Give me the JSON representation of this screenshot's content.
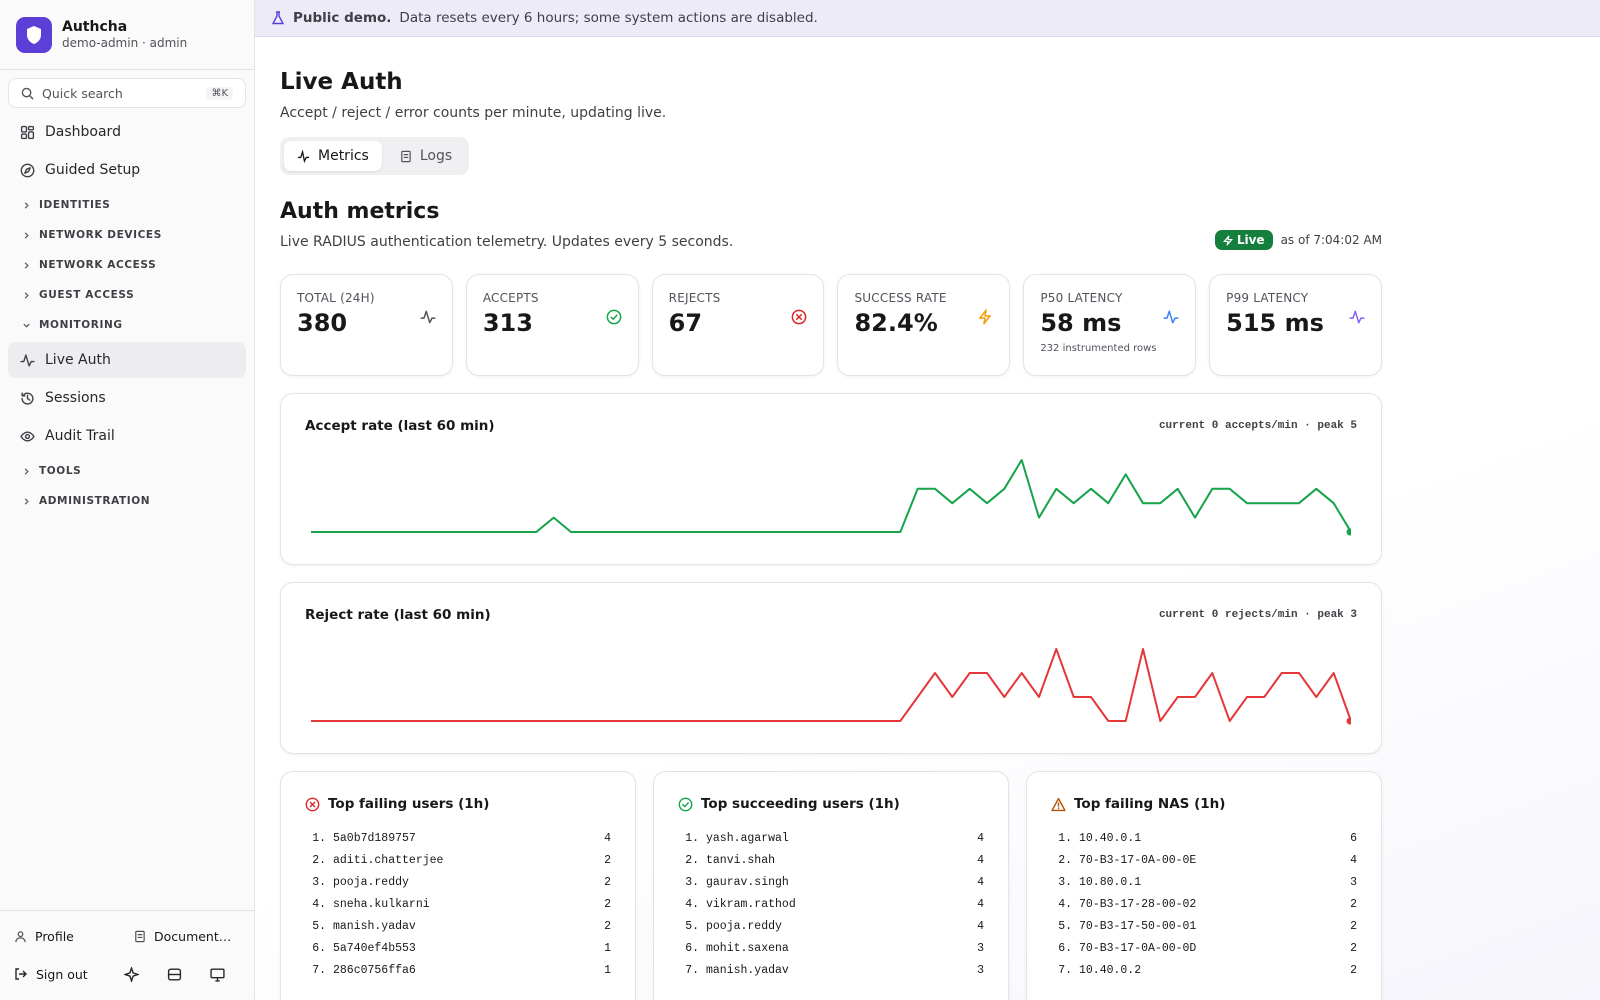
{
  "banner": {
    "bold": "Public demo.",
    "text": "Data resets every 6 hours; some system actions are disabled."
  },
  "sidebar": {
    "brand": "Authcha",
    "user": "demo-admin · admin",
    "search": "Quick search",
    "shortcut": "⌘K",
    "nav": [
      {
        "kind": "item",
        "label": "Dashboard",
        "icon": "grid"
      },
      {
        "kind": "item",
        "label": "Guided Setup",
        "icon": "compass"
      },
      {
        "kind": "group",
        "label": "IDENTITIES",
        "open": false
      },
      {
        "kind": "group",
        "label": "NETWORK DEVICES",
        "open": false
      },
      {
        "kind": "group",
        "label": "NETWORK ACCESS",
        "open": false
      },
      {
        "kind": "group",
        "label": "GUEST ACCESS",
        "open": false
      },
      {
        "kind": "group",
        "label": "MONITORING",
        "open": true
      },
      {
        "kind": "item",
        "label": "Live Auth",
        "icon": "pulse",
        "active": true
      },
      {
        "kind": "item",
        "label": "Sessions",
        "icon": "history"
      },
      {
        "kind": "item",
        "label": "Audit Trail",
        "icon": "eye"
      },
      {
        "kind": "group",
        "label": "TOOLS",
        "open": false
      },
      {
        "kind": "group",
        "label": "ADMINISTRATION",
        "open": false
      }
    ],
    "footer": {
      "profile": "Profile",
      "docs": "Document…",
      "signout": "Sign out"
    }
  },
  "page": {
    "title": "Live Auth",
    "subtitle": "Accept / reject / error counts per minute, updating live.",
    "tabs": [
      "Metrics",
      "Logs"
    ],
    "section_title": "Auth metrics",
    "section_subtitle": "Live RADIUS authentication telemetry. Updates every 5 seconds.",
    "live": "Live",
    "as_of": "as of 7:04:02 AM"
  },
  "stats": [
    {
      "label": "TOTAL (24H)",
      "value": "380",
      "icon": "pulse",
      "color": "#555555"
    },
    {
      "label": "ACCEPTS",
      "value": "313",
      "icon": "check",
      "color": "#16a34a"
    },
    {
      "label": "REJECTS",
      "value": "67",
      "icon": "x",
      "color": "#dc2626"
    },
    {
      "label": "SUCCESS RATE",
      "value": "82.4%",
      "icon": "bolt",
      "color": "#f59e0b"
    },
    {
      "label": "P50 LATENCY",
      "value": "58 ms",
      "note": "232 instrumented rows",
      "icon": "pulse",
      "color": "#3b82f6"
    },
    {
      "label": "P99 LATENCY",
      "value": "515 ms",
      "icon": "pulse",
      "color": "#8b5cf6"
    }
  ],
  "charts": [
    {
      "title": "Accept rate (last 60 min)",
      "summary": "current 0 accepts/min · peak 5",
      "color": "#16a34a",
      "values": [
        0,
        0,
        0,
        0,
        0,
        0,
        0,
        0,
        0,
        0,
        0,
        0,
        0,
        0,
        1,
        0,
        0,
        0,
        0,
        0,
        0,
        0,
        0,
        0,
        0,
        0,
        0,
        0,
        0,
        0,
        0,
        0,
        0,
        0,
        0,
        3,
        3,
        2,
        3,
        2,
        3,
        5,
        1,
        3,
        2,
        3,
        2,
        4,
        2,
        2,
        3,
        1,
        3,
        3,
        2,
        2,
        2,
        2,
        3,
        2,
        0
      ]
    },
    {
      "title": "Reject rate (last 60 min)",
      "summary": "current 0 rejects/min · peak 3",
      "color": "#e5383b",
      "values": [
        0,
        0,
        0,
        0,
        0,
        0,
        0,
        0,
        0,
        0,
        0,
        0,
        0,
        0,
        0,
        0,
        0,
        0,
        0,
        0,
        0,
        0,
        0,
        0,
        0,
        0,
        0,
        0,
        0,
        0,
        0,
        0,
        0,
        0,
        0,
        1,
        2,
        1,
        2,
        2,
        1,
        2,
        1,
        3,
        1,
        1,
        0,
        0,
        3,
        0,
        1,
        1,
        2,
        0,
        1,
        1,
        2,
        2,
        1,
        2,
        0
      ]
    }
  ],
  "lists": [
    {
      "title": "Top failing users (1h)",
      "icon": "x",
      "color": "#dc2626",
      "rows": [
        [
          "5a0b7d189757",
          4
        ],
        [
          "aditi.chatterjee",
          2
        ],
        [
          "pooja.reddy",
          2
        ],
        [
          "sneha.kulkarni",
          2
        ],
        [
          "manish.yadav",
          2
        ],
        [
          "5a740ef4b553",
          1
        ],
        [
          "286c0756ffa6",
          1
        ]
      ]
    },
    {
      "title": "Top succeeding users (1h)",
      "icon": "check",
      "color": "#16a34a",
      "rows": [
        [
          "yash.agarwal",
          4
        ],
        [
          "tanvi.shah",
          4
        ],
        [
          "gaurav.singh",
          4
        ],
        [
          "vikram.rathod",
          4
        ],
        [
          "pooja.reddy",
          4
        ],
        [
          "mohit.saxena",
          3
        ],
        [
          "manish.yadav",
          3
        ]
      ]
    },
    {
      "title": "Top failing NAS (1h)",
      "icon": "warn",
      "color": "#b45309",
      "rows": [
        [
          "10.40.0.1",
          6
        ],
        [
          "70-B3-17-0A-00-0E",
          4
        ],
        [
          "10.80.0.1",
          3
        ],
        [
          "70-B3-17-28-00-02",
          2
        ],
        [
          "70-B3-17-50-00-01",
          2
        ],
        [
          "70-B3-17-0A-00-0D",
          2
        ],
        [
          "10.40.0.2",
          2
        ]
      ]
    }
  ]
}
